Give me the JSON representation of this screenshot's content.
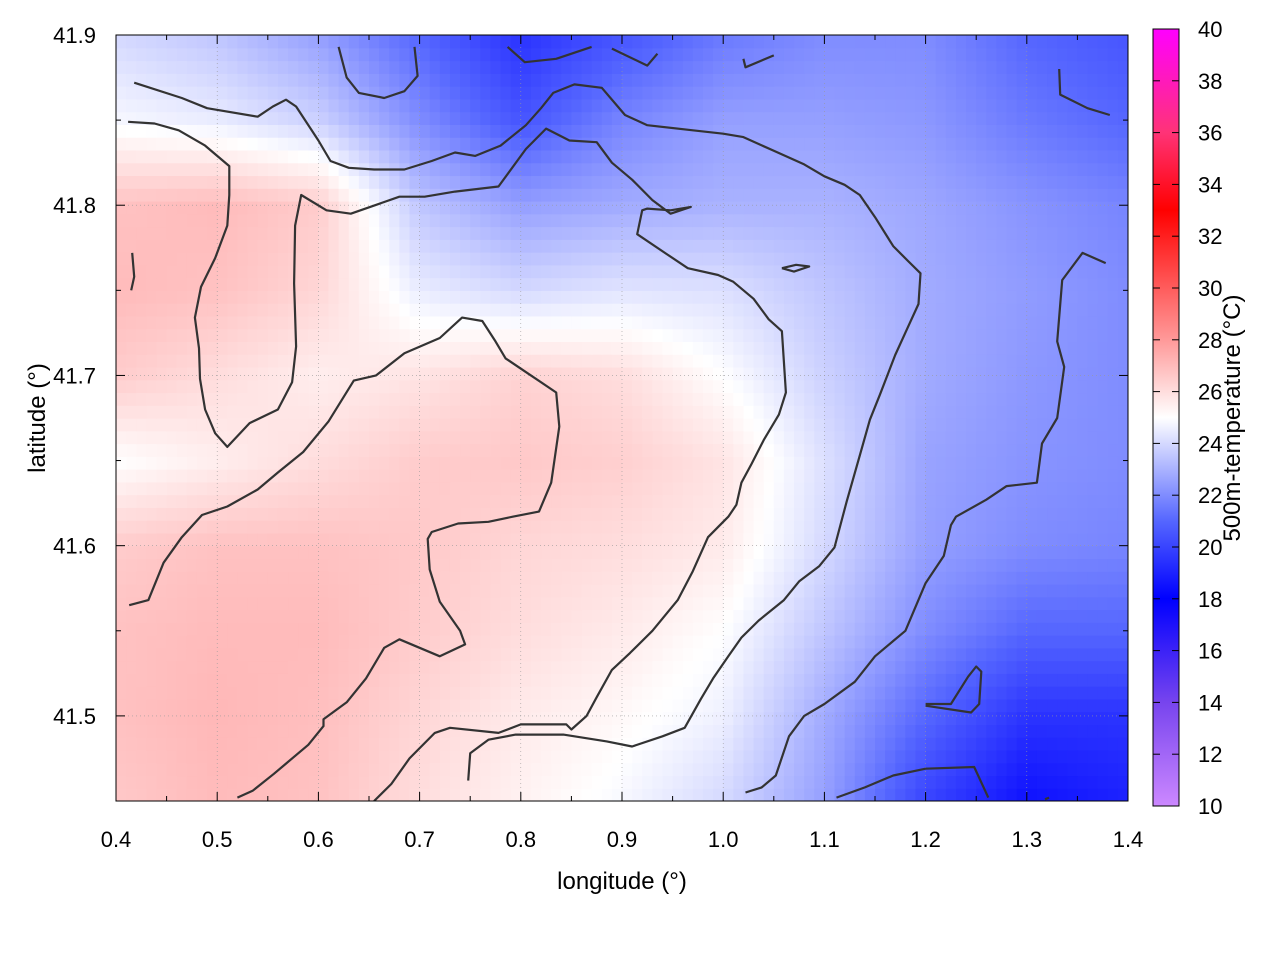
{
  "chart_data": {
    "type": "heatmap",
    "title": "",
    "xlabel": "longitude (°)",
    "ylabel": "latitude (°)",
    "xlim": [
      0.4,
      1.4
    ],
    "ylim": [
      41.45,
      41.9
    ],
    "x_ticks": [
      0.4,
      0.5,
      0.6,
      0.7,
      0.8,
      0.9,
      1.0,
      1.1,
      1.2,
      1.3,
      1.4
    ],
    "x_tick_labels": [
      "0.4",
      "0.5",
      "0.6",
      "0.7",
      "0.8",
      "0.9",
      "1.0",
      "1.1",
      "1.2",
      "1.3",
      "1.4"
    ],
    "y_ticks": [
      41.5,
      41.6,
      41.7,
      41.8,
      41.9
    ],
    "y_tick_labels": [
      "41.5",
      "41.6",
      "41.7",
      "41.8",
      "41.9"
    ],
    "grid": true,
    "colorbar": {
      "label": "500m-temperature (°C)",
      "range": [
        10,
        40
      ],
      "ticks": [
        10,
        12,
        14,
        16,
        18,
        20,
        22,
        24,
        26,
        28,
        30,
        32,
        34,
        36,
        38,
        40
      ],
      "tick_labels": [
        "10",
        "12",
        "14",
        "16",
        "18",
        "20",
        "22",
        "24",
        "26",
        "28",
        "30",
        "32",
        "34",
        "36",
        "38",
        "40"
      ],
      "colors": [
        [
          10,
          "#cc88ff"
        ],
        [
          14,
          "#7744ee"
        ],
        [
          18,
          "#0000ff"
        ],
        [
          21,
          "#5566ff"
        ],
        [
          25,
          "#ffffff"
        ],
        [
          28,
          "#ff9999"
        ],
        [
          33,
          "#ff0000"
        ],
        [
          36,
          "#ff3377"
        ],
        [
          40,
          "#ff00ff"
        ]
      ]
    },
    "field_estimate": {
      "description_free": true,
      "lon": [
        0.4,
        0.5,
        0.6,
        0.7,
        0.8,
        0.9,
        1.0,
        1.1,
        1.2,
        1.3,
        1.4
      ],
      "lat": [
        41.45,
        41.5,
        41.55,
        41.6,
        41.65,
        41.7,
        41.75,
        41.8,
        41.85,
        41.9
      ],
      "values": [
        [
          26.6,
          27.0,
          26.8,
          26.0,
          25.4,
          24.8,
          24.0,
          22.5,
          20.0,
          18.5,
          19.0
        ],
        [
          26.8,
          27.1,
          26.9,
          26.2,
          25.6,
          25.2,
          24.6,
          22.8,
          21.0,
          19.5,
          19.5
        ],
        [
          26.8,
          27.0,
          27.0,
          26.5,
          26.0,
          25.6,
          25.0,
          23.5,
          22.0,
          21.0,
          21.0
        ],
        [
          26.5,
          26.8,
          26.8,
          26.6,
          26.2,
          26.0,
          25.6,
          24.0,
          22.5,
          22.0,
          21.8
        ],
        [
          25.0,
          25.5,
          26.0,
          26.5,
          26.6,
          26.4,
          25.8,
          24.2,
          22.6,
          22.2,
          22.0
        ],
        [
          26.5,
          26.0,
          25.5,
          25.8,
          26.3,
          26.0,
          25.0,
          23.8,
          22.8,
          22.3,
          22.0
        ],
        [
          27.0,
          26.8,
          26.2,
          24.5,
          24.0,
          24.3,
          24.2,
          23.5,
          22.8,
          22.4,
          22.0
        ],
        [
          26.8,
          27.0,
          26.5,
          23.5,
          22.5,
          22.8,
          23.0,
          23.0,
          22.7,
          22.2,
          21.8
        ],
        [
          24.8,
          24.5,
          23.8,
          22.0,
          20.5,
          21.8,
          22.5,
          22.5,
          22.3,
          21.5,
          21.0
        ],
        [
          24.0,
          23.5,
          22.5,
          21.0,
          19.5,
          20.5,
          21.5,
          22.0,
          22.0,
          21.0,
          20.5
        ]
      ]
    },
    "contours": [
      [
        [
          0.418,
          41.872
        ],
        [
          0.465,
          41.863
        ],
        [
          0.49,
          41.857
        ],
        [
          0.54,
          41.852
        ],
        [
          0.555,
          41.858
        ],
        [
          0.568,
          41.862
        ],
        [
          0.578,
          41.858
        ],
        [
          0.6,
          41.838
        ],
        [
          0.612,
          41.826
        ],
        [
          0.63,
          41.822
        ],
        [
          0.655,
          41.821
        ],
        [
          0.685,
          41.821
        ],
        [
          0.712,
          41.826
        ],
        [
          0.735,
          41.831
        ],
        [
          0.755,
          41.829
        ],
        [
          0.78,
          41.835
        ],
        [
          0.805,
          41.847
        ],
        [
          0.82,
          41.857
        ],
        [
          0.832,
          41.866
        ],
        [
          0.853,
          41.871
        ],
        [
          0.88,
          41.869
        ],
        [
          0.903,
          41.853
        ],
        [
          0.925,
          41.847
        ],
        [
          0.97,
          41.844
        ],
        [
          1.0,
          41.842
        ],
        [
          1.02,
          41.84
        ],
        [
          1.05,
          41.832
        ],
        [
          1.08,
          41.824
        ],
        [
          1.1,
          41.817
        ],
        [
          1.12,
          41.812
        ],
        [
          1.135,
          41.806
        ],
        [
          1.15,
          41.793
        ],
        [
          1.168,
          41.776
        ],
        [
          1.183,
          41.767
        ],
        [
          1.195,
          41.76
        ],
        [
          1.193,
          41.742
        ],
        [
          1.183,
          41.729
        ],
        [
          1.17,
          41.712
        ],
        [
          1.155,
          41.689
        ],
        [
          1.145,
          41.674
        ],
        [
          1.135,
          41.653
        ],
        [
          1.122,
          41.626
        ],
        [
          1.11,
          41.599
        ],
        [
          1.095,
          41.588
        ],
        [
          1.075,
          41.579
        ],
        [
          1.06,
          41.568
        ],
        [
          1.035,
          41.556
        ],
        [
          1.018,
          41.546
        ],
        [
          1.005,
          41.535
        ],
        [
          0.99,
          41.522
        ],
        [
          0.978,
          41.51
        ],
        [
          0.962,
          41.493
        ],
        [
          0.94,
          41.488
        ],
        [
          0.91,
          41.482
        ],
        [
          0.885,
          41.485
        ],
        [
          0.842,
          41.489
        ],
        [
          0.795,
          41.489
        ],
        [
          0.768,
          41.486
        ],
        [
          0.75,
          41.478
        ],
        [
          0.748,
          41.462
        ]
      ],
      [
        [
          0.412,
          41.849
        ],
        [
          0.438,
          41.848
        ],
        [
          0.462,
          41.844
        ],
        [
          0.488,
          41.835
        ],
        [
          0.512,
          41.823
        ],
        [
          0.512,
          41.806
        ],
        [
          0.51,
          41.788
        ],
        [
          0.498,
          41.769
        ],
        [
          0.484,
          41.752
        ],
        [
          0.478,
          41.734
        ],
        [
          0.482,
          41.716
        ],
        [
          0.483,
          41.698
        ],
        [
          0.488,
          41.68
        ],
        [
          0.498,
          41.666
        ],
        [
          0.51,
          41.658
        ],
        [
          0.532,
          41.672
        ],
        [
          0.56,
          41.68
        ],
        [
          0.574,
          41.696
        ],
        [
          0.578,
          41.717
        ],
        [
          0.576,
          41.754
        ],
        [
          0.577,
          41.788
        ],
        [
          0.583,
          41.806
        ],
        [
          0.608,
          41.797
        ],
        [
          0.632,
          41.795
        ],
        [
          0.68,
          41.805
        ],
        [
          0.705,
          41.805
        ],
        [
          0.735,
          41.808
        ],
        [
          0.778,
          41.811
        ],
        [
          0.805,
          41.833
        ],
        [
          0.825,
          41.845
        ],
        [
          0.848,
          41.838
        ],
        [
          0.875,
          41.837
        ],
        [
          0.89,
          41.825
        ],
        [
          0.91,
          41.815
        ],
        [
          0.93,
          41.803
        ],
        [
          0.948,
          41.795
        ],
        [
          0.968,
          41.799
        ],
        [
          0.948,
          41.797
        ],
        [
          0.925,
          41.798
        ],
        [
          0.92,
          41.797
        ],
        [
          0.915,
          41.783
        ],
        [
          0.945,
          41.771
        ],
        [
          0.965,
          41.763
        ],
        [
          0.995,
          41.759
        ],
        [
          1.01,
          41.755
        ],
        [
          1.03,
          41.745
        ],
        [
          1.045,
          41.733
        ],
        [
          1.058,
          41.726
        ],
        [
          1.062,
          41.69
        ],
        [
          1.055,
          41.677
        ],
        [
          1.04,
          41.662
        ],
        [
          1.028,
          41.648
        ],
        [
          1.018,
          41.637
        ],
        [
          1.013,
          41.624
        ],
        [
          1.005,
          41.617
        ],
        [
          0.985,
          41.605
        ],
        [
          0.97,
          41.585
        ],
        [
          0.955,
          41.568
        ],
        [
          0.93,
          41.55
        ],
        [
          0.908,
          41.537
        ],
        [
          0.89,
          41.527
        ],
        [
          0.875,
          41.511
        ],
        [
          0.865,
          41.5
        ],
        [
          0.85,
          41.492
        ],
        [
          0.845,
          41.495
        ],
        [
          0.8,
          41.495
        ],
        [
          0.778,
          41.49
        ],
        [
          0.73,
          41.493
        ],
        [
          0.715,
          41.49
        ],
        [
          0.69,
          41.475
        ],
        [
          0.672,
          41.46
        ],
        [
          0.655,
          41.45
        ]
      ],
      [
        [
          0.413,
          41.565
        ],
        [
          0.432,
          41.568
        ],
        [
          0.447,
          41.59
        ],
        [
          0.465,
          41.605
        ],
        [
          0.485,
          41.618
        ],
        [
          0.51,
          41.623
        ],
        [
          0.54,
          41.633
        ],
        [
          0.56,
          41.643
        ],
        [
          0.585,
          41.655
        ],
        [
          0.61,
          41.673
        ],
        [
          0.635,
          41.697
        ],
        [
          0.657,
          41.7
        ],
        [
          0.685,
          41.713
        ],
        [
          0.72,
          41.722
        ],
        [
          0.742,
          41.734
        ],
        [
          0.762,
          41.732
        ],
        [
          0.775,
          41.72
        ],
        [
          0.785,
          41.71
        ],
        [
          0.81,
          41.7
        ],
        [
          0.835,
          41.69
        ],
        [
          0.838,
          41.67
        ],
        [
          0.83,
          41.637
        ],
        [
          0.818,
          41.62
        ],
        [
          0.792,
          41.617
        ],
        [
          0.768,
          41.614
        ],
        [
          0.738,
          41.613
        ],
        [
          0.712,
          41.608
        ],
        [
          0.708,
          41.604
        ],
        [
          0.71,
          41.586
        ],
        [
          0.72,
          41.567
        ],
        [
          0.74,
          41.55
        ],
        [
          0.745,
          41.542
        ],
        [
          0.72,
          41.535
        ],
        [
          0.68,
          41.545
        ],
        [
          0.665,
          41.54
        ],
        [
          0.647,
          41.522
        ],
        [
          0.628,
          41.508
        ],
        [
          0.605,
          41.498
        ],
        [
          0.605,
          41.494
        ],
        [
          0.59,
          41.483
        ],
        [
          0.568,
          41.472
        ],
        [
          0.556,
          41.466
        ],
        [
          0.535,
          41.456
        ],
        [
          0.52,
          41.452
        ]
      ],
      [
        [
          0.62,
          41.893
        ],
        [
          0.628,
          41.875
        ],
        [
          0.64,
          41.866
        ],
        [
          0.665,
          41.863
        ],
        [
          0.685,
          41.867
        ],
        [
          0.698,
          41.876
        ],
        [
          0.695,
          41.893
        ]
      ],
      [
        [
          0.787,
          41.893
        ],
        [
          0.804,
          41.884
        ],
        [
          0.835,
          41.886
        ],
        [
          0.87,
          41.893
        ]
      ],
      [
        [
          0.89,
          41.892
        ],
        [
          0.925,
          41.882
        ],
        [
          0.935,
          41.889
        ]
      ],
      [
        [
          1.02,
          41.886
        ],
        [
          1.022,
          41.881
        ],
        [
          1.05,
          41.888
        ]
      ],
      [
        [
          1.332,
          41.88
        ],
        [
          1.333,
          41.865
        ],
        [
          1.36,
          41.857
        ],
        [
          1.382,
          41.853
        ]
      ],
      [
        [
          0.416,
          41.772
        ],
        [
          0.418,
          41.758
        ],
        [
          0.415,
          41.75
        ]
      ],
      [
        [
          1.058,
          41.763
        ],
        [
          1.072,
          41.765
        ],
        [
          1.085,
          41.764
        ],
        [
          1.07,
          41.761
        ],
        [
          1.058,
          41.763
        ]
      ],
      [
        [
          1.378,
          41.766
        ],
        [
          1.355,
          41.772
        ],
        [
          1.335,
          41.756
        ],
        [
          1.33,
          41.72
        ],
        [
          1.337,
          41.705
        ],
        [
          1.33,
          41.675
        ],
        [
          1.315,
          41.66
        ],
        [
          1.31,
          41.637
        ],
        [
          1.28,
          41.635
        ],
        [
          1.26,
          41.627
        ],
        [
          1.23,
          41.617
        ],
        [
          1.225,
          41.612
        ],
        [
          1.218,
          41.594
        ],
        [
          1.2,
          41.578
        ],
        [
          1.18,
          41.55
        ],
        [
          1.168,
          41.544
        ],
        [
          1.15,
          41.535
        ],
        [
          1.13,
          41.52
        ],
        [
          1.1,
          41.507
        ],
        [
          1.08,
          41.5
        ],
        [
          1.065,
          41.488
        ],
        [
          1.052,
          41.465
        ],
        [
          1.038,
          41.458
        ],
        [
          1.022,
          41.455
        ]
      ],
      [
        [
          1.2,
          41.506
        ],
        [
          1.245,
          41.502
        ],
        [
          1.253,
          41.507
        ],
        [
          1.255,
          41.526
        ],
        [
          1.25,
          41.529
        ],
        [
          1.242,
          41.523
        ],
        [
          1.225,
          41.507
        ],
        [
          1.2,
          41.507
        ]
      ],
      [
        [
          1.112,
          41.452
        ],
        [
          1.14,
          41.458
        ],
        [
          1.168,
          41.465
        ],
        [
          1.2,
          41.469
        ],
        [
          1.248,
          41.47
        ],
        [
          1.262,
          41.452
        ]
      ],
      [
        [
          1.318,
          41.451
        ],
        [
          1.322,
          41.452
        ]
      ]
    ]
  }
}
